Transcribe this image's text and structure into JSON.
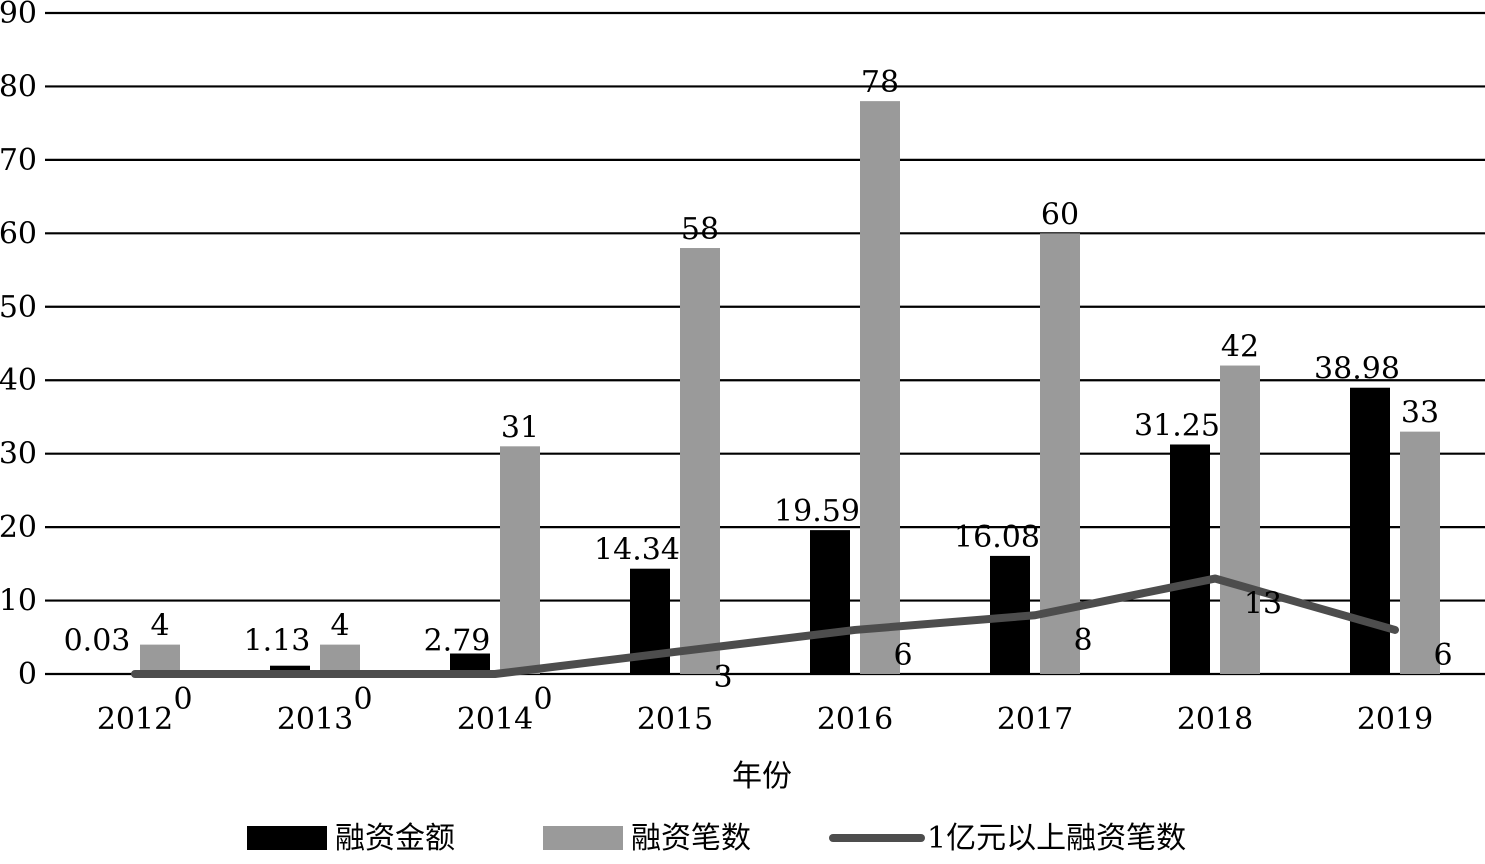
{
  "chart_data": {
    "type": "bar",
    "xlabel": "年份",
    "ylabel": "",
    "ylim": [
      0,
      90
    ],
    "yticks": [
      0,
      10,
      20,
      30,
      40,
      50,
      60,
      70,
      80,
      90
    ],
    "grid": true,
    "legend_position": "bottom",
    "categories": [
      "2012",
      "2013",
      "2014",
      "2015",
      "2016",
      "2017",
      "2018",
      "2019"
    ],
    "series": [
      {
        "name": "融资金额",
        "kind": "bar",
        "color": "#000000",
        "values": [
          0.03,
          1.13,
          2.79,
          14.34,
          19.59,
          16.08,
          31.25,
          38.98
        ]
      },
      {
        "name": "融资笔数",
        "kind": "bar",
        "color": "#9a9a9a",
        "values": [
          4,
          4,
          31,
          58,
          78,
          60,
          42,
          33
        ]
      },
      {
        "name": "1亿元以上融资笔数",
        "kind": "line",
        "color": "#4d4d4d",
        "values": [
          0,
          0,
          0,
          3,
          6,
          8,
          13,
          6
        ]
      }
    ]
  }
}
